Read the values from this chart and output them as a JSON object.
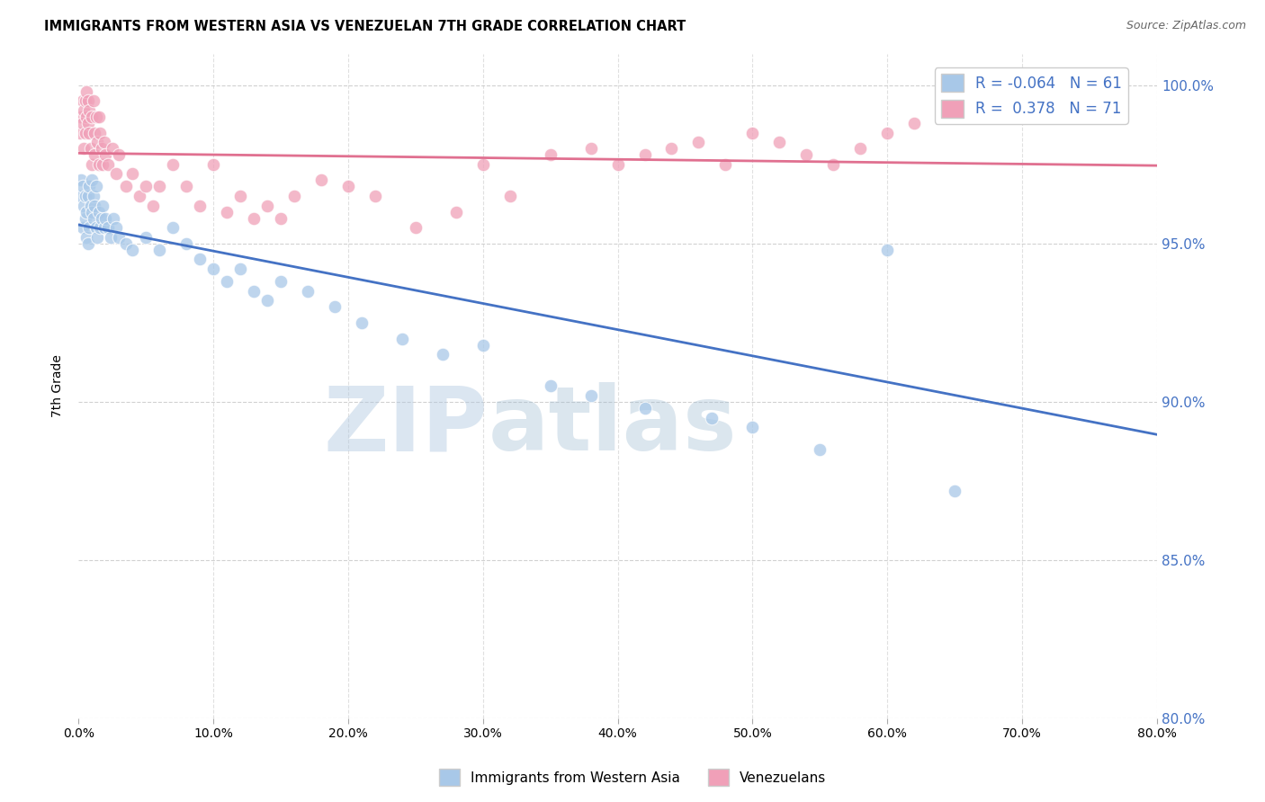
{
  "title": "IMMIGRANTS FROM WESTERN ASIA VS VENEZUELAN 7TH GRADE CORRELATION CHART",
  "source": "Source: ZipAtlas.com",
  "ylabel": "7th Grade",
  "legend_label_blue": "Immigrants from Western Asia",
  "legend_label_pink": "Venezuelans",
  "R_blue": -0.064,
  "N_blue": 61,
  "R_pink": 0.378,
  "N_pink": 71,
  "xlim": [
    0.0,
    80.0
  ],
  "ylim": [
    80.0,
    101.0
  ],
  "xticks": [
    0.0,
    10.0,
    20.0,
    30.0,
    40.0,
    50.0,
    60.0,
    70.0,
    80.0
  ],
  "yticks": [
    80.0,
    85.0,
    90.0,
    95.0,
    100.0
  ],
  "color_blue": "#a8c8e8",
  "color_pink": "#f0a0b8",
  "color_blue_line": "#4472c4",
  "color_pink_line": "#e07090",
  "background_color": "#ffffff",
  "watermark_zip": "ZIP",
  "watermark_atlas": "atlas",
  "blue_x": [
    0.1,
    0.2,
    0.3,
    0.3,
    0.4,
    0.5,
    0.5,
    0.6,
    0.6,
    0.7,
    0.7,
    0.8,
    0.8,
    0.9,
    1.0,
    1.0,
    1.1,
    1.1,
    1.2,
    1.3,
    1.3,
    1.4,
    1.5,
    1.6,
    1.7,
    1.8,
    1.9,
    2.0,
    2.2,
    2.4,
    2.6,
    2.8,
    3.0,
    3.5,
    4.0,
    5.0,
    6.0,
    7.0,
    8.0,
    9.0,
    10.0,
    11.0,
    12.0,
    13.0,
    14.0,
    15.0,
    17.0,
    19.0,
    21.0,
    24.0,
    27.0,
    30.0,
    35.0,
    38.0,
    42.0,
    47.0,
    50.0,
    55.0,
    60.0,
    65.0,
    75.0
  ],
  "blue_y": [
    96.5,
    97.0,
    96.8,
    95.5,
    96.2,
    95.8,
    96.5,
    96.0,
    95.2,
    96.5,
    95.0,
    96.8,
    95.5,
    96.2,
    97.0,
    96.0,
    96.5,
    95.8,
    96.2,
    95.5,
    96.8,
    95.2,
    96.0,
    95.5,
    95.8,
    96.2,
    95.5,
    95.8,
    95.5,
    95.2,
    95.8,
    95.5,
    95.2,
    95.0,
    94.8,
    95.2,
    94.8,
    95.5,
    95.0,
    94.5,
    94.2,
    93.8,
    94.2,
    93.5,
    93.2,
    93.8,
    93.5,
    93.0,
    92.5,
    92.0,
    91.5,
    91.8,
    90.5,
    90.2,
    89.8,
    89.5,
    89.2,
    88.5,
    94.8,
    87.2,
    100.0
  ],
  "pink_x": [
    0.1,
    0.2,
    0.3,
    0.3,
    0.4,
    0.4,
    0.5,
    0.5,
    0.6,
    0.6,
    0.7,
    0.7,
    0.8,
    0.8,
    0.9,
    1.0,
    1.0,
    1.1,
    1.2,
    1.2,
    1.3,
    1.4,
    1.5,
    1.5,
    1.6,
    1.7,
    1.8,
    1.9,
    2.0,
    2.2,
    2.5,
    2.8,
    3.0,
    3.5,
    4.0,
    4.5,
    5.0,
    5.5,
    6.0,
    7.0,
    8.0,
    9.0,
    10.0,
    11.0,
    12.0,
    13.0,
    14.0,
    15.0,
    16.0,
    18.0,
    20.0,
    22.0,
    25.0,
    28.0,
    30.0,
    32.0,
    35.0,
    38.0,
    40.0,
    42.0,
    44.0,
    46.0,
    48.0,
    50.0,
    52.0,
    54.0,
    56.0,
    58.0,
    60.0,
    62.0,
    65.0
  ],
  "pink_y": [
    98.5,
    99.0,
    99.5,
    98.8,
    99.2,
    98.0,
    99.5,
    98.5,
    99.8,
    99.0,
    99.5,
    98.8,
    99.2,
    98.5,
    98.0,
    99.0,
    97.5,
    99.5,
    98.5,
    97.8,
    99.0,
    98.2,
    97.5,
    99.0,
    98.5,
    98.0,
    97.5,
    98.2,
    97.8,
    97.5,
    98.0,
    97.2,
    97.8,
    96.8,
    97.2,
    96.5,
    96.8,
    96.2,
    96.8,
    97.5,
    96.8,
    96.2,
    97.5,
    96.0,
    96.5,
    95.8,
    96.2,
    95.8,
    96.5,
    97.0,
    96.8,
    96.5,
    95.5,
    96.0,
    97.5,
    96.5,
    97.8,
    98.0,
    97.5,
    97.8,
    98.0,
    98.2,
    97.5,
    98.5,
    98.2,
    97.8,
    97.5,
    98.0,
    98.5,
    98.8,
    99.0
  ]
}
